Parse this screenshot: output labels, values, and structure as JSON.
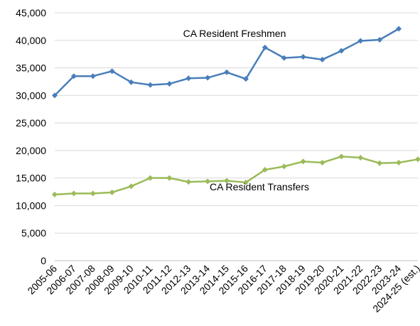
{
  "chart_data": {
    "type": "line",
    "categories": [
      "2005-06",
      "2006-07",
      "2007-08",
      "2008-09",
      "2009-10",
      "2010-11",
      "2011-12",
      "2012-13",
      "2013-14",
      "2014-15",
      "2015-16",
      "2016-17",
      "2017-18",
      "2018-19",
      "2019-20",
      "2020-21",
      "2021-22",
      "2022-23",
      "2023-24",
      "2024-25 (est.)"
    ],
    "series": [
      {
        "name": "CA Resident Freshmen",
        "color": "#4a7ebb",
        "values": [
          30000,
          33500,
          33500,
          34400,
          32400,
          31900,
          32100,
          33100,
          33200,
          34200,
          33000,
          38700,
          36800,
          37000,
          36500,
          38100,
          39900,
          40100,
          42100,
          null
        ]
      },
      {
        "name": "CA Resident Transfers",
        "color": "#9bbb59",
        "values": [
          12000,
          12200,
          12200,
          12400,
          13500,
          15000,
          15000,
          14300,
          14400,
          14500,
          14200,
          16500,
          17100,
          18000,
          17800,
          18900,
          18700,
          17700,
          17800,
          18400
        ]
      }
    ],
    "ylim": [
      0,
      45000
    ],
    "yticks": [
      0,
      {
        "value": 5000,
        "label": "5,000"
      },
      {
        "value": 10000,
        "label": "10,000"
      },
      {
        "value": 15000,
        "label": "15,000"
      },
      {
        "value": 20000,
        "label": "20,000"
      },
      {
        "value": 25000,
        "label": "25,000"
      },
      {
        "value": 30000,
        "label": "30,000"
      },
      {
        "value": 35000,
        "label": "35,000"
      },
      {
        "value": 40000,
        "label": "40,000"
      },
      {
        "value": 45000,
        "label": "45,000"
      }
    ],
    "grid": true
  }
}
